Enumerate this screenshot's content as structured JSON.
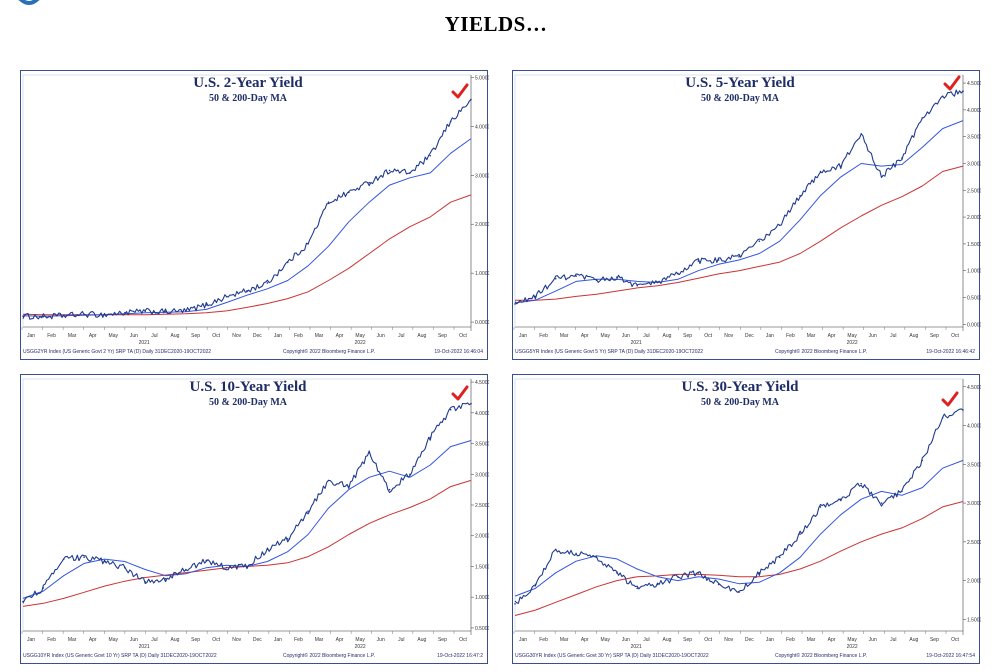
{
  "page": {
    "title": "YIELDS…"
  },
  "colors": {
    "price": "#1f3a8f",
    "ma50": "#3355dd",
    "ma200": "#cc3333",
    "check": "#e02020",
    "frame": "#3b4f8f"
  },
  "chart_data": [
    {
      "type": "line",
      "title": "U.S. 2-Year Yield",
      "subtitle": "50 & 200-Day MA",
      "x_tick_labels": [
        "Jan",
        "Feb",
        "Mar",
        "Apr",
        "May",
        "Jun",
        "Jul",
        "Aug",
        "Sep",
        "Oct",
        "Nov",
        "Dec",
        "Jan",
        "Feb",
        "Mar",
        "Apr",
        "May",
        "Jun",
        "Jul",
        "Aug",
        "Sep",
        "Oct"
      ],
      "year_labels": [
        "2021",
        "2022"
      ],
      "ylim": [
        -0.1,
        5.05
      ],
      "y_ticks": [
        0,
        1,
        2,
        3,
        4,
        5
      ],
      "y_tick_labels": [
        "0.0000",
        "1.0000",
        "2.0000",
        "3.0000",
        "4.0000",
        "5.0000"
      ],
      "x": [
        "2021-01",
        "2021-02",
        "2021-03",
        "2021-04",
        "2021-05",
        "2021-06",
        "2021-07",
        "2021-08",
        "2021-09",
        "2021-10",
        "2021-11",
        "2021-12",
        "2022-01",
        "2022-02",
        "2022-03",
        "2022-04",
        "2022-05",
        "2022-06",
        "2022-07",
        "2022-08",
        "2022-09",
        "2022-10",
        "2022-10-19"
      ],
      "series": [
        {
          "values": [
            0.12,
            0.11,
            0.13,
            0.16,
            0.15,
            0.19,
            0.22,
            0.21,
            0.23,
            0.35,
            0.52,
            0.64,
            0.8,
            1.22,
            1.6,
            2.45,
            2.65,
            2.85,
            3.1,
            3.05,
            3.4,
            4.1,
            4.55
          ]
        },
        {
          "values": [
            0.13,
            0.12,
            0.13,
            0.14,
            0.15,
            0.17,
            0.19,
            0.2,
            0.21,
            0.26,
            0.4,
            0.55,
            0.68,
            0.85,
            1.15,
            1.55,
            2.05,
            2.45,
            2.8,
            2.95,
            3.05,
            3.45,
            3.75
          ]
        },
        {
          "values": [
            0.16,
            0.15,
            0.15,
            0.15,
            0.15,
            0.15,
            0.15,
            0.16,
            0.17,
            0.19,
            0.23,
            0.3,
            0.38,
            0.48,
            0.62,
            0.85,
            1.1,
            1.4,
            1.7,
            1.95,
            2.15,
            2.45,
            2.6
          ]
        }
      ],
      "footer": {
        "left": "USGG2YR Index (US Generic Govt 2 Yr) SRP TA (D)  Daily 31DEC2020-19OCT2022",
        "mid": "Copyright© 2022 Bloomberg Finance L.P.",
        "right": "19-Oct-2022 16:46:04"
      }
    },
    {
      "type": "line",
      "title": "U.S. 5-Year Yield",
      "subtitle": "50 & 200-Day MA",
      "x_tick_labels": [
        "Jan",
        "Feb",
        "Mar",
        "Apr",
        "May",
        "Jun",
        "Jul",
        "Aug",
        "Sep",
        "Oct",
        "Nov",
        "Dec",
        "Jan",
        "Feb",
        "Mar",
        "Apr",
        "May",
        "Jun",
        "Jul",
        "Aug",
        "Sep",
        "Oct"
      ],
      "year_labels": [
        "2021",
        "2022"
      ],
      "ylim": [
        -0.05,
        4.65
      ],
      "y_ticks": [
        0,
        0.5,
        1,
        1.5,
        2,
        2.5,
        3,
        3.5,
        4,
        4.5
      ],
      "y_tick_labels": [
        "0.0000",
        "0.5000",
        "1.0000",
        "1.5000",
        "2.0000",
        "2.5000",
        "3.0000",
        "3.5000",
        "4.0000",
        "4.5000"
      ],
      "x": [
        "2021-01",
        "2021-02",
        "2021-03",
        "2021-04",
        "2021-05",
        "2021-06",
        "2021-07",
        "2021-08",
        "2021-09",
        "2021-10",
        "2021-11",
        "2021-12",
        "2022-01",
        "2022-02",
        "2022-03",
        "2022-04",
        "2022-05",
        "2022-06",
        "2022-07",
        "2022-08",
        "2022-09",
        "2022-10",
        "2022-10-19"
      ],
      "series": [
        {
          "values": [
            0.38,
            0.52,
            0.85,
            0.9,
            0.82,
            0.88,
            0.72,
            0.78,
            0.95,
            1.18,
            1.2,
            1.26,
            1.55,
            1.85,
            2.4,
            2.85,
            2.95,
            3.55,
            2.75,
            3.1,
            3.85,
            4.25,
            4.35
          ]
        },
        {
          "values": [
            0.4,
            0.45,
            0.62,
            0.8,
            0.84,
            0.84,
            0.8,
            0.78,
            0.84,
            1.0,
            1.12,
            1.2,
            1.32,
            1.55,
            1.95,
            2.4,
            2.75,
            3.0,
            2.95,
            2.98,
            3.3,
            3.65,
            3.8
          ]
        },
        {
          "values": [
            0.45,
            0.45,
            0.47,
            0.52,
            0.56,
            0.62,
            0.68,
            0.72,
            0.78,
            0.86,
            0.94,
            1.0,
            1.08,
            1.16,
            1.32,
            1.55,
            1.8,
            2.02,
            2.22,
            2.38,
            2.58,
            2.85,
            2.95
          ]
        }
      ],
      "footer": {
        "left": "USGG5YR Index (US Generic Govt 5 Yr) SRP TA (D)  Daily 31DEC2020-19OCT2022",
        "mid": "Copyright© 2022 Bloomberg Finance L.P.",
        "right": "19-Oct-2022 16:46:42"
      }
    },
    {
      "type": "line",
      "title": "U.S. 10-Year Yield",
      "subtitle": "50 & 200-Day MA",
      "x_tick_labels": [
        "Jan",
        "Feb",
        "Mar",
        "Apr",
        "May",
        "Jun",
        "Jul",
        "Aug",
        "Sep",
        "Oct",
        "Nov",
        "Dec",
        "Jan",
        "Feb",
        "Mar",
        "Apr",
        "May",
        "Jun",
        "Jul",
        "Aug",
        "Sep",
        "Oct"
      ],
      "year_labels": [
        "2021",
        "2022"
      ],
      "ylim": [
        0.45,
        4.55
      ],
      "y_ticks": [
        0.5,
        1,
        1.5,
        2,
        2.5,
        3,
        3.5,
        4,
        4.5
      ],
      "y_tick_labels": [
        "0.5000",
        "1.0000",
        "1.5000",
        "2.0000",
        "2.5000",
        "3.0000",
        "3.5000",
        "4.0000",
        "4.5000"
      ],
      "x": [
        "2021-01",
        "2021-02",
        "2021-03",
        "2021-04",
        "2021-05",
        "2021-06",
        "2021-07",
        "2021-08",
        "2021-09",
        "2021-10",
        "2021-11",
        "2021-12",
        "2022-01",
        "2022-02",
        "2022-03",
        "2022-04",
        "2022-05",
        "2022-06",
        "2022-07",
        "2022-08",
        "2022-09",
        "2022-10",
        "2022-10-19"
      ],
      "series": [
        {
          "values": [
            0.93,
            1.15,
            1.62,
            1.65,
            1.58,
            1.48,
            1.25,
            1.3,
            1.45,
            1.6,
            1.48,
            1.5,
            1.78,
            1.95,
            2.4,
            2.9,
            2.8,
            3.35,
            2.75,
            3.0,
            3.6,
            4.05,
            4.15
          ]
        },
        {
          "values": [
            0.98,
            1.1,
            1.35,
            1.55,
            1.62,
            1.58,
            1.45,
            1.35,
            1.38,
            1.48,
            1.52,
            1.5,
            1.58,
            1.74,
            2.02,
            2.45,
            2.75,
            2.95,
            3.05,
            2.95,
            3.15,
            3.45,
            3.55
          ]
        },
        {
          "values": [
            0.85,
            0.9,
            0.98,
            1.08,
            1.18,
            1.26,
            1.32,
            1.36,
            1.4,
            1.44,
            1.48,
            1.5,
            1.52,
            1.56,
            1.66,
            1.82,
            2.02,
            2.2,
            2.34,
            2.46,
            2.6,
            2.8,
            2.9
          ]
        }
      ],
      "footer": {
        "left": "USGG10YR Index (US Generic Govt 10 Yr) SRP TA (D)  Daily 31DEC2020-19OCT2022",
        "mid": "Copyright© 2022 Bloomberg Finance L.P.",
        "right": "19-Oct-2022 16:47:2"
      }
    },
    {
      "type": "line",
      "title": "U.S. 30-Year Yield",
      "subtitle": "50 & 200-Day MA",
      "x_tick_labels": [
        "Jan",
        "Feb",
        "Mar",
        "Apr",
        "May",
        "Jun",
        "Jul",
        "Aug",
        "Sep",
        "Oct",
        "Nov",
        "Dec",
        "Jan",
        "Feb",
        "Mar",
        "Apr",
        "May",
        "Jun",
        "Jul",
        "Aug",
        "Sep",
        "Oct"
      ],
      "year_labels": [
        "2021",
        "2022"
      ],
      "ylim": [
        1.35,
        4.6
      ],
      "y_ticks": [
        1.5,
        2,
        2.5,
        3,
        3.5,
        4,
        4.5
      ],
      "y_tick_labels": [
        "1.5000",
        "2.0000",
        "2.5000",
        "3.0000",
        "3.5000",
        "4.0000",
        "4.5000"
      ],
      "x": [
        "2021-01",
        "2021-02",
        "2021-03",
        "2021-04",
        "2021-05",
        "2021-06",
        "2021-07",
        "2021-08",
        "2021-09",
        "2021-10",
        "2021-11",
        "2021-12",
        "2022-01",
        "2022-02",
        "2022-03",
        "2022-04",
        "2022-05",
        "2022-06",
        "2022-07",
        "2022-08",
        "2022-09",
        "2022-10",
        "2022-10-19"
      ],
      "series": [
        {
          "values": [
            1.7,
            1.95,
            2.4,
            2.35,
            2.3,
            2.1,
            1.9,
            1.95,
            2.05,
            2.1,
            1.95,
            1.85,
            2.1,
            2.3,
            2.6,
            2.95,
            3.05,
            3.25,
            3.0,
            3.15,
            3.55,
            4.1,
            4.2
          ]
        },
        {
          "values": [
            1.8,
            1.9,
            2.1,
            2.25,
            2.32,
            2.28,
            2.15,
            2.05,
            2.0,
            2.05,
            2.02,
            1.96,
            1.98,
            2.1,
            2.3,
            2.6,
            2.85,
            3.05,
            3.15,
            3.1,
            3.2,
            3.45,
            3.55
          ]
        },
        {
          "values": [
            1.55,
            1.62,
            1.72,
            1.82,
            1.92,
            2.0,
            2.05,
            2.06,
            2.08,
            2.08,
            2.07,
            2.05,
            2.05,
            2.08,
            2.15,
            2.25,
            2.38,
            2.5,
            2.6,
            2.68,
            2.8,
            2.95,
            3.02
          ]
        }
      ],
      "footer": {
        "left": "USGG30YR Index (US Generic Govt 30 Yr) SRP TA (D)  Daily 31DEC2020-19OCT2022",
        "mid": "Copyright© 2022 Bloomberg Finance L.P.",
        "right": "19-Oct-2022 16:47:54"
      }
    }
  ]
}
